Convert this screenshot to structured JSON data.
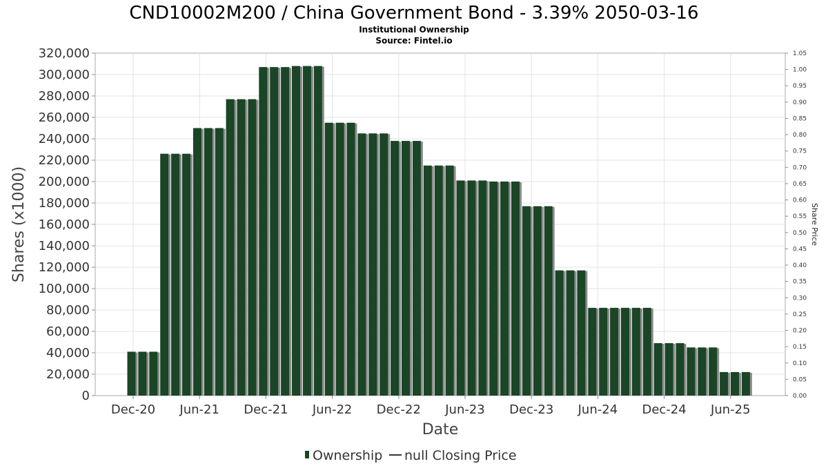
{
  "chart_data": {
    "type": "bar",
    "title": "CND10002M200 / China Government Bond - 3.39% 2050-03-16",
    "subtitle_lines": [
      "Institutional Ownership",
      "Source: Fintel.io"
    ],
    "xlabel": "Date",
    "ylabel": "Shares (x1000)",
    "y2label": "Share Price",
    "ylim": [
      0,
      320000
    ],
    "y2lim": [
      0,
      1.05
    ],
    "yticks": [
      "0",
      "20,000",
      "40,000",
      "60,000",
      "80,000",
      "100,000",
      "120,000",
      "140,000",
      "160,000",
      "180,000",
      "200,000",
      "220,000",
      "240,000",
      "260,000",
      "280,000",
      "300,000",
      "320,000"
    ],
    "y2ticks": [
      "0.00",
      "0.05",
      "0.10",
      "0.15",
      "0.20",
      "0.25",
      "0.30",
      "0.35",
      "0.40",
      "0.45",
      "0.50",
      "0.55",
      "0.60",
      "0.65",
      "0.70",
      "0.75",
      "0.80",
      "0.85",
      "0.90",
      "0.95",
      "1.00",
      "1.05"
    ],
    "xticks": [
      "Dec-20",
      "Jun-21",
      "Dec-21",
      "Jun-22",
      "Dec-22",
      "Jun-23",
      "Dec-23",
      "Jun-24",
      "Dec-24",
      "Jun-25"
    ],
    "grid": true,
    "legend_position": "bottom",
    "series": [
      {
        "name": "Ownership",
        "color": "#1a4526",
        "values": [
          41000,
          41000,
          41000,
          226000,
          226000,
          226000,
          250000,
          250000,
          250000,
          277000,
          277000,
          277000,
          307000,
          307000,
          307000,
          308000,
          308000,
          308000,
          255000,
          255000,
          255000,
          245000,
          245000,
          245000,
          238000,
          238000,
          238000,
          215000,
          215000,
          215000,
          201000,
          201000,
          201000,
          200000,
          200000,
          200000,
          177000,
          177000,
          177000,
          117000,
          117000,
          117000,
          82000,
          82000,
          82000,
          82000,
          82000,
          82000,
          49000,
          49000,
          49000,
          45000,
          45000,
          45000,
          22000,
          22000,
          22000
        ]
      }
    ],
    "legend": [
      {
        "label": "Ownership",
        "marker": "bar",
        "color": "#1a4526"
      },
      {
        "label": "null Closing Price",
        "marker": "line",
        "color": "#333333"
      }
    ]
  }
}
